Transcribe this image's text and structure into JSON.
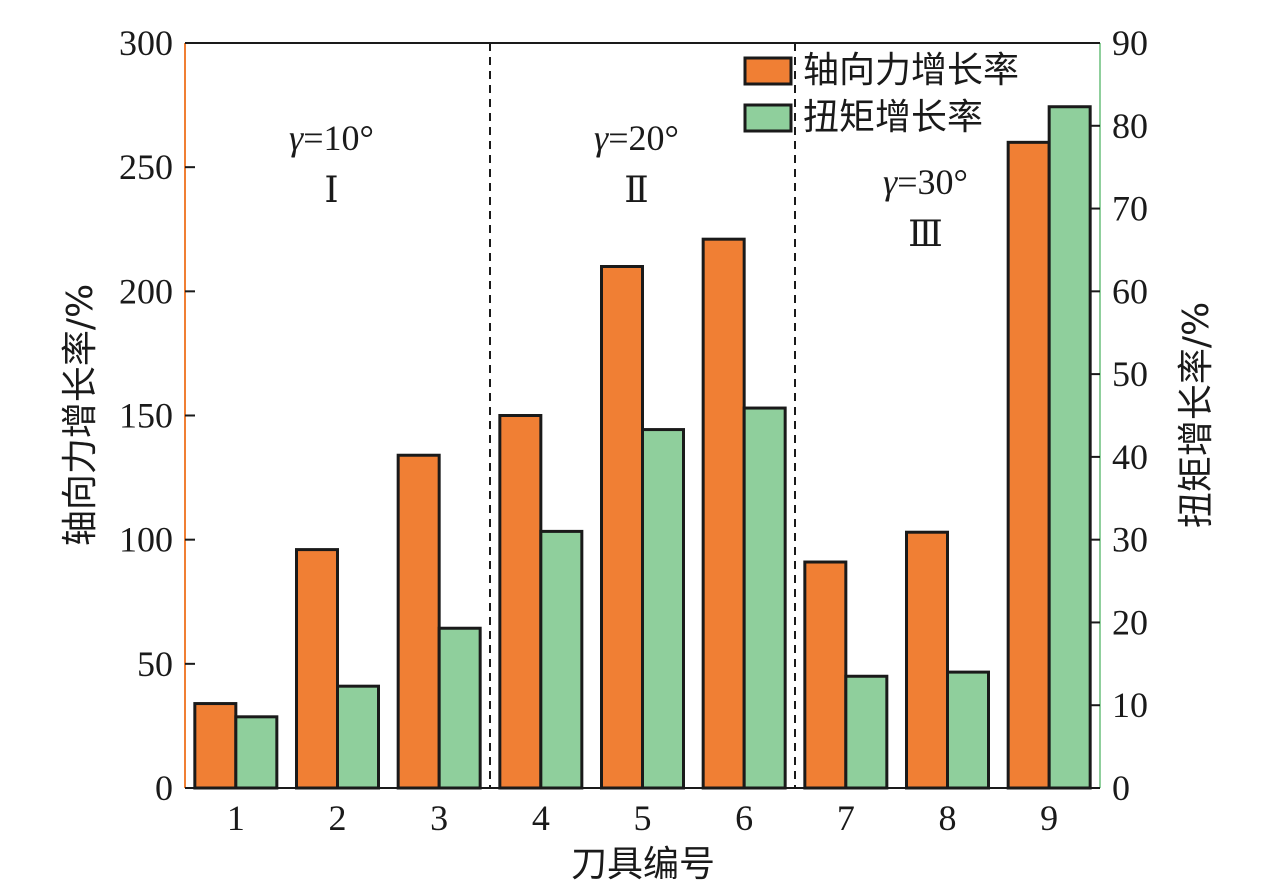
{
  "chart_data": {
    "type": "bar",
    "categories": [
      "1",
      "2",
      "3",
      "4",
      "5",
      "6",
      "7",
      "8",
      "9"
    ],
    "xlabel": "刀具编号",
    "ylabel_left": "轴向力增长率/%",
    "ylabel_right": "扭矩增长率/%",
    "ylim_left": [
      0,
      300
    ],
    "ylim_right": [
      0,
      90
    ],
    "yticks_left": [
      "0",
      "50",
      "100",
      "150",
      "200",
      "250",
      "300"
    ],
    "yticks_right": [
      "0",
      "10",
      "20",
      "30",
      "40",
      "50",
      "60",
      "70",
      "80",
      "90"
    ],
    "series": [
      {
        "name": "轴向力增长率",
        "axis": "left",
        "color": "#f07f34",
        "values": [
          34,
          96,
          134,
          150,
          210,
          221,
          91,
          103,
          260
        ]
      },
      {
        "name": "扭矩增长率",
        "axis": "right",
        "color": "#8fcf9c",
        "values": [
          8.6,
          12.3,
          19.3,
          31.0,
          43.3,
          45.9,
          13.5,
          14.0,
          82.3
        ]
      }
    ],
    "groups": [
      {
        "gamma_symbol": "γ",
        "gamma_value": "=10°",
        "roman": "Ⅰ"
      },
      {
        "gamma_symbol": "γ",
        "gamma_value": "=20°",
        "roman": "Ⅱ"
      },
      {
        "gamma_symbol": "γ",
        "gamma_value": "=30°",
        "roman": "Ⅲ"
      }
    ],
    "group_dividers_after_category": [
      3,
      6
    ],
    "legend_position": "top-right",
    "grid": false,
    "axis_colors": {
      "left": "#f07f34",
      "right": "#8fcf9c"
    }
  }
}
